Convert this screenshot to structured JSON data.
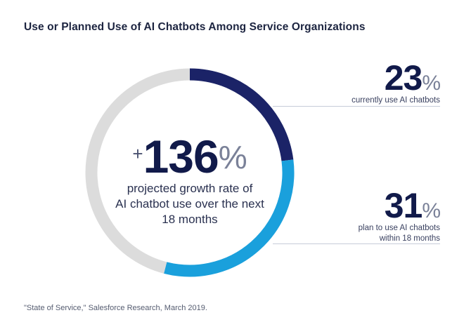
{
  "title": "Use or Planned Use of AI Chatbots Among Service Organizations",
  "center": {
    "prefix": "+",
    "value": "136",
    "unit": "%",
    "description_lines": [
      "projected growth rate of",
      "AI chatbot use over the next",
      "18 months"
    ]
  },
  "stats": [
    {
      "value": "23",
      "unit": "%",
      "label_lines": [
        "currently use AI chatbots"
      ]
    },
    {
      "value": "31",
      "unit": "%",
      "label_lines": [
        "plan to use AI chatbots",
        "within 18 months"
      ]
    }
  ],
  "source": "\"State of Service,\" Salesforce Research, March 2019.",
  "chart_data": {
    "type": "pie",
    "categories": [
      "currently use AI chatbots",
      "plan to use AI chatbots within 18 months",
      "other"
    ],
    "values": [
      23,
      31,
      46
    ],
    "colors": [
      "#1b2367",
      "#1aa0dc",
      "#dcdcdc"
    ]
  }
}
